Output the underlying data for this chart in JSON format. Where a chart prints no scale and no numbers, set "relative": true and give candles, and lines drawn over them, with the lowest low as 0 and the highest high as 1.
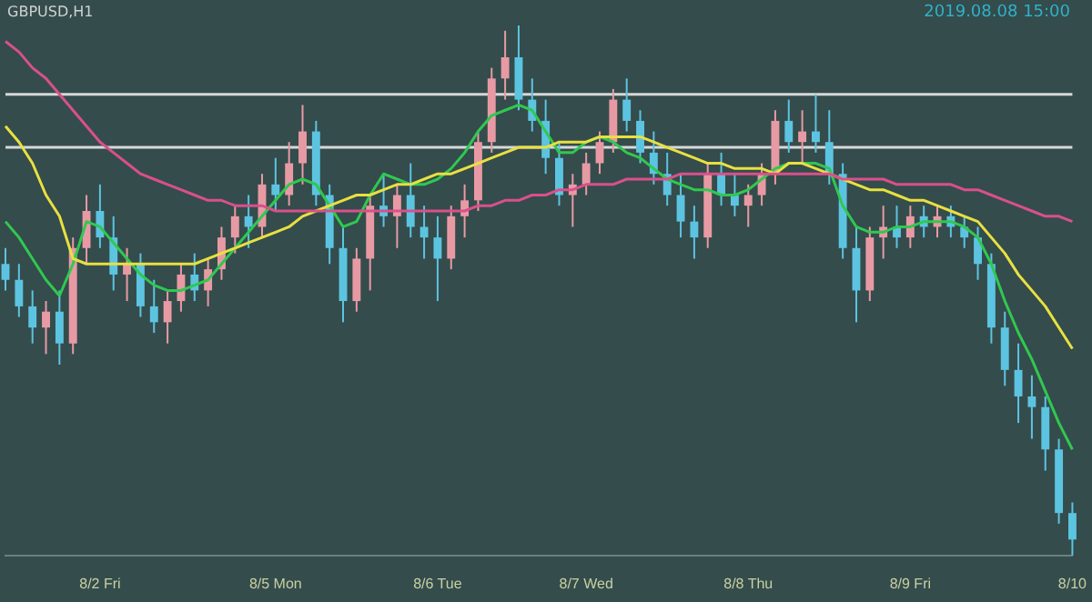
{
  "chart_data": {
    "type": "candlestick",
    "title": "GBPUSD,H1",
    "annotations": [
      "2019.08.08 15:00"
    ],
    "relative": true,
    "legend": false,
    "tick_labels": "x",
    "categories": [
      null,
      null,
      null,
      null,
      null,
      null,
      null,
      "8/2 Fri",
      null,
      null,
      null,
      null,
      null,
      null,
      null,
      null,
      null,
      null,
      null,
      null,
      "8/5 Mon",
      null,
      null,
      null,
      null,
      null,
      null,
      null,
      null,
      null,
      null,
      null,
      "8/6 Tue",
      null,
      null,
      null,
      null,
      null,
      null,
      null,
      null,
      null,
      null,
      "8/7 Wed",
      null,
      null,
      null,
      null,
      null,
      null,
      null,
      null,
      null,
      null,
      null,
      "8/8 Thu",
      null,
      null,
      null,
      null,
      null,
      null,
      null,
      null,
      null,
      null,
      null,
      "8/9 Fri",
      null,
      null,
      null,
      null,
      null,
      null,
      null,
      null,
      null,
      null,
      null,
      "8/10"
    ],
    "ref_lines": [
      {
        "axis": "y",
        "value": 0.77,
        "color": "#d8d8d8"
      },
      {
        "axis": "y",
        "value": 0.87,
        "color": "#d8d8d8"
      }
    ],
    "series": [
      {
        "type": "line",
        "color": "#d9508a",
        "values": [
          0.97,
          0.95,
          0.92,
          0.9,
          0.87,
          0.84,
          0.81,
          0.78,
          0.76,
          0.74,
          0.72,
          0.71,
          0.7,
          0.69,
          0.68,
          0.67,
          0.67,
          0.66,
          0.66,
          0.66,
          0.65,
          0.65,
          0.65,
          0.65,
          0.65,
          0.65,
          0.65,
          0.65,
          0.65,
          0.65,
          0.65,
          0.65,
          0.65,
          0.65,
          0.65,
          0.66,
          0.66,
          0.67,
          0.67,
          0.68,
          0.68,
          0.69,
          0.69,
          0.7,
          0.7,
          0.7,
          0.71,
          0.71,
          0.71,
          0.71,
          0.72,
          0.72,
          0.72,
          0.72,
          0.72,
          0.72,
          0.72,
          0.72,
          0.72,
          0.72,
          0.72,
          0.72,
          0.71,
          0.71,
          0.71,
          0.71,
          0.7,
          0.7,
          0.7,
          0.7,
          0.7,
          0.69,
          0.69,
          0.68,
          0.67,
          0.66,
          0.65,
          0.64,
          0.64,
          0.63
        ]
      },
      {
        "type": "line",
        "color": "#e8e040",
        "values": [
          0.81,
          0.78,
          0.74,
          0.68,
          0.64,
          0.56,
          0.55,
          0.55,
          0.55,
          0.55,
          0.55,
          0.55,
          0.55,
          0.55,
          0.55,
          0.56,
          0.57,
          0.58,
          0.59,
          0.6,
          0.61,
          0.62,
          0.64,
          0.65,
          0.66,
          0.67,
          0.68,
          0.68,
          0.69,
          0.7,
          0.7,
          0.71,
          0.72,
          0.72,
          0.73,
          0.74,
          0.75,
          0.76,
          0.77,
          0.77,
          0.77,
          0.78,
          0.78,
          0.78,
          0.79,
          0.79,
          0.79,
          0.79,
          0.78,
          0.77,
          0.76,
          0.75,
          0.74,
          0.74,
          0.73,
          0.73,
          0.73,
          0.72,
          0.74,
          0.74,
          0.73,
          0.72,
          0.71,
          0.7,
          0.69,
          0.69,
          0.68,
          0.67,
          0.67,
          0.66,
          0.65,
          0.64,
          0.63,
          0.6,
          0.57,
          0.53,
          0.5,
          0.47,
          0.43,
          0.39
        ]
      },
      {
        "type": "line",
        "color": "#30c850",
        "values": [
          0.63,
          0.6,
          0.56,
          0.52,
          0.49,
          0.55,
          0.63,
          0.62,
          0.59,
          0.56,
          0.53,
          0.51,
          0.5,
          0.5,
          0.51,
          0.52,
          0.55,
          0.58,
          0.61,
          0.64,
          0.67,
          0.7,
          0.71,
          0.7,
          0.66,
          0.62,
          0.63,
          0.68,
          0.72,
          0.71,
          0.7,
          0.7,
          0.71,
          0.73,
          0.76,
          0.8,
          0.83,
          0.84,
          0.85,
          0.84,
          0.8,
          0.76,
          0.76,
          0.78,
          0.79,
          0.78,
          0.76,
          0.75,
          0.73,
          0.71,
          0.7,
          0.69,
          0.69,
          0.68,
          0.68,
          0.69,
          0.71,
          0.73,
          0.74,
          0.74,
          0.74,
          0.73,
          0.66,
          0.62,
          0.61,
          0.61,
          0.62,
          0.62,
          0.63,
          0.63,
          0.63,
          0.62,
          0.6,
          0.55,
          0.48,
          0.42,
          0.37,
          0.31,
          0.25,
          0.2
        ]
      },
      {
        "type": "candlestick",
        "colors": [
          "#5cc4e0",
          "#5cc4e0",
          "#5cc4e0",
          "#e89aa4",
          "#5cc4e0",
          "#e89aa4",
          "#e89aa4",
          "#5cc4e0",
          "#5cc4e0",
          "#e89aa4",
          "#5cc4e0",
          "#5cc4e0",
          "#e89aa4",
          "#e89aa4",
          "#5cc4e0",
          "#e89aa4",
          "#e89aa4",
          "#e89aa4",
          "#5cc4e0",
          "#e89aa4",
          "#5cc4e0",
          "#e89aa4",
          "#e89aa4",
          "#5cc4e0",
          "#5cc4e0",
          "#5cc4e0",
          "#e89aa4",
          "#e89aa4",
          "#5cc4e0",
          "#e89aa4",
          "#5cc4e0",
          "#5cc4e0",
          "#5cc4e0",
          "#e89aa4",
          "#e89aa4",
          "#e89aa4",
          "#e89aa4",
          "#e89aa4",
          "#5cc4e0",
          "#5cc4e0",
          "#5cc4e0",
          "#5cc4e0",
          "#e89aa4",
          "#e89aa4",
          "#e89aa4",
          "#e89aa4",
          "#5cc4e0",
          "#5cc4e0",
          "#5cc4e0",
          "#5cc4e0",
          "#5cc4e0",
          "#5cc4e0",
          "#e89aa4",
          "#5cc4e0",
          "#5cc4e0",
          "#e89aa4",
          "#e89aa4",
          "#e89aa4",
          "#5cc4e0",
          "#e89aa4",
          "#5cc4e0",
          "#5cc4e0",
          "#5cc4e0",
          "#5cc4e0",
          "#e89aa4",
          "#e89aa4",
          "#5cc4e0",
          "#e89aa4",
          "#5cc4e0",
          "#e89aa4",
          "#5cc4e0",
          "#5cc4e0",
          "#5cc4e0",
          "#5cc4e0",
          "#5cc4e0",
          "#5cc4e0",
          "#5cc4e0",
          "#5cc4e0",
          "#5cc4e0",
          "#5cc4e0"
        ],
        "ohlc": [
          [
            0.55,
            0.58,
            0.5,
            0.52
          ],
          [
            0.52,
            0.55,
            0.45,
            0.47
          ],
          [
            0.47,
            0.5,
            0.4,
            0.43
          ],
          [
            0.43,
            0.48,
            0.38,
            0.46
          ],
          [
            0.46,
            0.5,
            0.36,
            0.4
          ],
          [
            0.4,
            0.6,
            0.38,
            0.58
          ],
          [
            0.58,
            0.68,
            0.55,
            0.65
          ],
          [
            0.65,
            0.7,
            0.58,
            0.6
          ],
          [
            0.6,
            0.64,
            0.5,
            0.53
          ],
          [
            0.53,
            0.58,
            0.48,
            0.55
          ],
          [
            0.55,
            0.57,
            0.45,
            0.47
          ],
          [
            0.47,
            0.52,
            0.42,
            0.44
          ],
          [
            0.44,
            0.5,
            0.4,
            0.48
          ],
          [
            0.48,
            0.55,
            0.46,
            0.53
          ],
          [
            0.53,
            0.57,
            0.48,
            0.5
          ],
          [
            0.5,
            0.56,
            0.47,
            0.54
          ],
          [
            0.54,
            0.62,
            0.52,
            0.6
          ],
          [
            0.6,
            0.66,
            0.57,
            0.64
          ],
          [
            0.64,
            0.68,
            0.58,
            0.62
          ],
          [
            0.62,
            0.72,
            0.6,
            0.7
          ],
          [
            0.7,
            0.75,
            0.65,
            0.68
          ],
          [
            0.68,
            0.78,
            0.66,
            0.74
          ],
          [
            0.74,
            0.85,
            0.7,
            0.8
          ],
          [
            0.8,
            0.82,
            0.66,
            0.68
          ],
          [
            0.68,
            0.7,
            0.55,
            0.58
          ],
          [
            0.58,
            0.62,
            0.44,
            0.48
          ],
          [
            0.48,
            0.58,
            0.46,
            0.56
          ],
          [
            0.56,
            0.68,
            0.5,
            0.66
          ],
          [
            0.66,
            0.72,
            0.62,
            0.64
          ],
          [
            0.64,
            0.7,
            0.58,
            0.68
          ],
          [
            0.68,
            0.74,
            0.6,
            0.62
          ],
          [
            0.62,
            0.66,
            0.56,
            0.6
          ],
          [
            0.6,
            0.64,
            0.48,
            0.56
          ],
          [
            0.56,
            0.66,
            0.54,
            0.64
          ],
          [
            0.64,
            0.7,
            0.6,
            0.67
          ],
          [
            0.67,
            0.8,
            0.65,
            0.78
          ],
          [
            0.78,
            0.92,
            0.76,
            0.9
          ],
          [
            0.9,
            0.99,
            0.86,
            0.94
          ],
          [
            0.94,
            1,
            0.84,
            0.86
          ],
          [
            0.86,
            0.9,
            0.8,
            0.82
          ],
          [
            0.82,
            0.86,
            0.72,
            0.75
          ],
          [
            0.75,
            0.78,
            0.66,
            0.68
          ],
          [
            0.68,
            0.72,
            0.62,
            0.7
          ],
          [
            0.7,
            0.76,
            0.68,
            0.74
          ],
          [
            0.74,
            0.8,
            0.72,
            0.78
          ],
          [
            0.78,
            0.88,
            0.76,
            0.86
          ],
          [
            0.86,
            0.9,
            0.8,
            0.82
          ],
          [
            0.82,
            0.84,
            0.74,
            0.76
          ],
          [
            0.76,
            0.8,
            0.7,
            0.72
          ],
          [
            0.72,
            0.76,
            0.66,
            0.68
          ],
          [
            0.68,
            0.72,
            0.6,
            0.63
          ],
          [
            0.63,
            0.66,
            0.56,
            0.6
          ],
          [
            0.6,
            0.74,
            0.58,
            0.72
          ],
          [
            0.72,
            0.76,
            0.66,
            0.68
          ],
          [
            0.68,
            0.72,
            0.64,
            0.66
          ],
          [
            0.66,
            0.7,
            0.62,
            0.68
          ],
          [
            0.68,
            0.74,
            0.66,
            0.72
          ],
          [
            0.72,
            0.84,
            0.7,
            0.82
          ],
          [
            0.82,
            0.86,
            0.76,
            0.78
          ],
          [
            0.78,
            0.84,
            0.74,
            0.8
          ],
          [
            0.8,
            0.87,
            0.76,
            0.78
          ],
          [
            0.78,
            0.84,
            0.7,
            0.72
          ],
          [
            0.72,
            0.74,
            0.56,
            0.58
          ],
          [
            0.58,
            0.62,
            0.44,
            0.5
          ],
          [
            0.5,
            0.62,
            0.48,
            0.6
          ],
          [
            0.6,
            0.66,
            0.56,
            0.62
          ],
          [
            0.62,
            0.66,
            0.58,
            0.6
          ],
          [
            0.6,
            0.66,
            0.58,
            0.64
          ],
          [
            0.64,
            0.66,
            0.6,
            0.62
          ],
          [
            0.62,
            0.66,
            0.6,
            0.64
          ],
          [
            0.64,
            0.66,
            0.6,
            0.62
          ],
          [
            0.62,
            0.64,
            0.58,
            0.6
          ],
          [
            0.6,
            0.62,
            0.52,
            0.55
          ],
          [
            0.55,
            0.57,
            0.4,
            0.43
          ],
          [
            0.43,
            0.46,
            0.32,
            0.35
          ],
          [
            0.35,
            0.4,
            0.25,
            0.3
          ],
          [
            0.3,
            0.34,
            0.22,
            0.28
          ],
          [
            0.28,
            0.3,
            0.16,
            0.2
          ],
          [
            0.2,
            0.22,
            0.06,
            0.08
          ],
          [
            0.08,
            0.1,
            0,
            0.03
          ]
        ]
      }
    ]
  }
}
